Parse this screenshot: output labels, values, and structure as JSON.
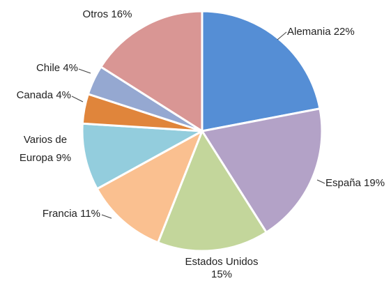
{
  "chart_data": {
    "type": "pie",
    "categories": [
      "Alemania",
      "España",
      "Estados Unidos",
      "Francia",
      "Varios de Europa",
      "Canada",
      "Chile",
      "Otros"
    ],
    "values": [
      22,
      19,
      15,
      11,
      9,
      4,
      4,
      16
    ],
    "value_labels": [
      "22%",
      "19%",
      "15%",
      "11%",
      "9%",
      "4%",
      "4%",
      "16%"
    ],
    "colors": [
      "#558ed5",
      "#b3a2c7",
      "#c3d69b",
      "#fac090",
      "#93cddd",
      "#e0853b",
      "#95a8d1",
      "#d99694"
    ]
  }
}
